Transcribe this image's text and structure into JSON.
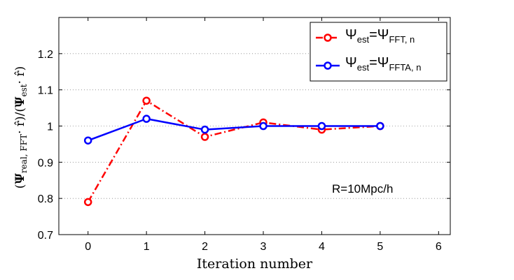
{
  "chart_data": {
    "type": "line",
    "xlabel": "Iteration number",
    "ylabel_parts": {
      "open": "(",
      "psi": "Ψ",
      "sub1": "real, FFT",
      "dot1": "· r̂)/(",
      "psi2": "Ψ",
      "sub2": "est",
      "dot2": "· r̂)"
    },
    "xlim": [
      -0.5,
      6.2
    ],
    "ylim": [
      0.7,
      1.3
    ],
    "xticks": [
      0,
      1,
      2,
      3,
      4,
      5,
      6
    ],
    "xtick_labels": [
      "0",
      "1",
      "2",
      "3",
      "4",
      "5",
      "6"
    ],
    "yticks": [
      0.7,
      0.8,
      0.9,
      1.0,
      1.1,
      1.2
    ],
    "ytick_labels": [
      "0.7",
      "0.8",
      "0.9",
      "1",
      "1.1",
      "1.2"
    ],
    "grid": "horizontal dotted",
    "legend_position": "top-right",
    "annotation": "R=10Mpc/h",
    "series": [
      {
        "name": "Ψest=ΨFFT, n",
        "label_main": "Ψ",
        "label_sub1": "est",
        "label_eq": "=Ψ",
        "label_sub2": "FFT, n",
        "color": "#ff0000",
        "style": "dash-dot",
        "x": [
          0,
          1,
          2,
          3,
          4,
          5
        ],
        "y": [
          0.79,
          1.07,
          0.97,
          1.01,
          0.99,
          1.0
        ]
      },
      {
        "name": "Ψest=ΨFFTA, n",
        "label_main": "Ψ",
        "label_sub1": "est",
        "label_eq": "=Ψ",
        "label_sub2": "FFTA, n",
        "color": "#0000ff",
        "style": "solid",
        "x": [
          0,
          1,
          2,
          3,
          4,
          5
        ],
        "y": [
          0.96,
          1.02,
          0.99,
          1.0,
          1.0,
          1.0
        ]
      }
    ]
  }
}
